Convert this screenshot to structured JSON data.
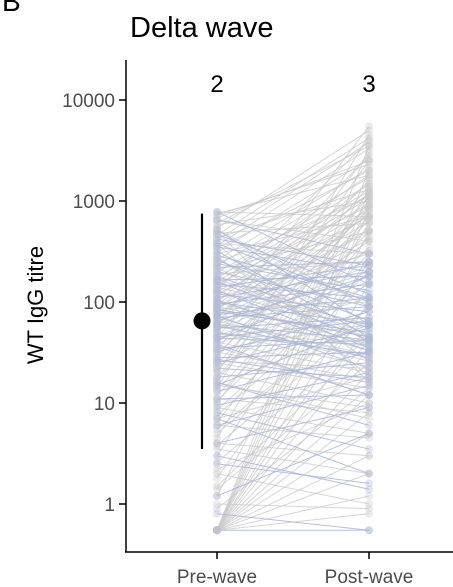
{
  "panel_letter": "B",
  "chart_data": {
    "type": "scatter",
    "title": "Delta wave",
    "xlabel": "",
    "ylabel": "WT IgG titre",
    "categories": [
      "Pre-wave",
      "Post-wave"
    ],
    "y_scale": "log10",
    "ylim": [
      0.4,
      20000
    ],
    "y_ticks": [
      1,
      10,
      100,
      1000,
      10000
    ],
    "y_tick_labels": [
      "1",
      "10",
      "100",
      "1000",
      "10000"
    ],
    "annotations": [
      "2",
      "3"
    ],
    "grid": false,
    "legend": "none",
    "summary": {
      "category": "Pre-wave",
      "median": 65,
      "lower": 3.5,
      "upper": 750
    },
    "colors": {
      "grey": "#c8c8c8",
      "blue": "#a9b6d9",
      "summary": "#000000",
      "axis": "#000000"
    },
    "pairs_blue": [
      [
        0.55,
        0.55
      ],
      [
        0.8,
        0.55
      ],
      [
        1.2,
        5
      ],
      [
        2.5,
        1.6
      ],
      [
        4,
        9
      ],
      [
        6,
        15
      ],
      [
        8,
        3.5
      ],
      [
        9.5,
        20
      ],
      [
        11,
        12
      ],
      [
        13,
        32
      ],
      [
        15,
        60
      ],
      [
        18,
        25
      ],
      [
        22,
        18
      ],
      [
        25,
        55
      ],
      [
        28,
        32
      ],
      [
        32,
        80
      ],
      [
        35,
        42
      ],
      [
        38,
        12
      ],
      [
        42,
        180
      ],
      [
        45,
        65
      ],
      [
        50,
        30
      ],
      [
        55,
        70
      ],
      [
        60,
        42
      ],
      [
        65,
        180
      ],
      [
        70,
        90
      ],
      [
        75,
        110
      ],
      [
        80,
        50
      ],
      [
        85,
        45
      ],
      [
        90,
        250
      ],
      [
        95,
        150
      ],
      [
        100,
        60
      ],
      [
        110,
        200
      ],
      [
        120,
        80
      ],
      [
        130,
        35
      ],
      [
        140,
        230
      ],
      [
        150,
        110
      ],
      [
        165,
        180
      ],
      [
        180,
        55
      ],
      [
        200,
        90
      ],
      [
        220,
        250
      ],
      [
        240,
        130
      ],
      [
        260,
        65
      ],
      [
        290,
        110
      ],
      [
        320,
        45
      ],
      [
        350,
        200
      ],
      [
        380,
        100
      ],
      [
        420,
        230
      ],
      [
        470,
        120
      ],
      [
        520,
        60
      ],
      [
        650,
        300
      ],
      [
        780,
        150
      ],
      [
        3,
        1.4
      ],
      [
        7,
        2
      ],
      [
        16,
        6
      ],
      [
        27,
        16
      ],
      [
        44,
        38
      ],
      [
        58,
        28
      ],
      [
        73,
        22
      ],
      [
        105,
        33
      ],
      [
        160,
        42
      ]
    ],
    "pairs_grey": [
      [
        0.55,
        1.2
      ],
      [
        0.55,
        2
      ],
      [
        0.55,
        3
      ],
      [
        0.55,
        5
      ],
      [
        0.55,
        8
      ],
      [
        0.55,
        12
      ],
      [
        0.55,
        20
      ],
      [
        0.55,
        35
      ],
      [
        0.55,
        60
      ],
      [
        0.55,
        100
      ],
      [
        0.55,
        150
      ],
      [
        0.55,
        300
      ],
      [
        0.55,
        500
      ],
      [
        0.55,
        800
      ],
      [
        0.55,
        1200
      ],
      [
        0.55,
        2000
      ],
      [
        0.55,
        3500
      ],
      [
        1.2,
        900
      ],
      [
        1.5,
        40
      ],
      [
        1.8,
        250
      ],
      [
        2.2,
        10
      ],
      [
        3,
        600
      ],
      [
        3.5,
        2
      ],
      [
        4.5,
        1300
      ],
      [
        5,
        90
      ],
      [
        6.5,
        450
      ],
      [
        7,
        18
      ],
      [
        8.5,
        200
      ],
      [
        10,
        1000
      ],
      [
        12,
        350
      ],
      [
        14,
        4500
      ],
      [
        16,
        7
      ],
      [
        18,
        700
      ],
      [
        20,
        2500
      ],
      [
        23,
        150
      ],
      [
        26,
        22
      ],
      [
        30,
        900
      ],
      [
        33,
        3000
      ],
      [
        36,
        12
      ],
      [
        40,
        400
      ],
      [
        45,
        1600
      ],
      [
        48,
        40
      ],
      [
        52,
        750
      ],
      [
        56,
        5500
      ],
      [
        60,
        200
      ],
      [
        65,
        30
      ],
      [
        70,
        1200
      ],
      [
        75,
        500
      ],
      [
        80,
        2800
      ],
      [
        85,
        100
      ],
      [
        90,
        45
      ],
      [
        100,
        1500
      ],
      [
        110,
        300
      ],
      [
        120,
        700
      ],
      [
        130,
        4000
      ],
      [
        140,
        60
      ],
      [
        150,
        900
      ],
      [
        170,
        1800
      ],
      [
        190,
        250
      ],
      [
        210,
        500
      ],
      [
        240,
        1100
      ],
      [
        270,
        40
      ],
      [
        300,
        700
      ],
      [
        340,
        2000
      ],
      [
        380,
        300
      ],
      [
        430,
        1300
      ],
      [
        480,
        600
      ],
      [
        520,
        90
      ],
      [
        580,
        1000
      ],
      [
        650,
        400
      ],
      [
        720,
        2300
      ],
      [
        780,
        700
      ],
      [
        0.55,
        0.8
      ],
      [
        1,
        0.9
      ],
      [
        2,
        1
      ],
      [
        4,
        3
      ],
      [
        6,
        4.5
      ],
      [
        9,
        5
      ],
      [
        11,
        8
      ],
      [
        15,
        9
      ],
      [
        20,
        10
      ],
      [
        25,
        14
      ],
      [
        32,
        17
      ],
      [
        40,
        20
      ],
      [
        50,
        23
      ],
      [
        60,
        26
      ],
      [
        70,
        28
      ],
      [
        85,
        33
      ],
      [
        100,
        38
      ],
      [
        130,
        45
      ],
      [
        170,
        48
      ],
      [
        220,
        35
      ],
      [
        280,
        26
      ],
      [
        380,
        18
      ],
      [
        500,
        16
      ],
      [
        0.9,
        14
      ],
      [
        1.4,
        25
      ],
      [
        2.6,
        45
      ],
      [
        3.8,
        70
      ],
      [
        5.5,
        90
      ],
      [
        7.5,
        160
      ],
      [
        10.5,
        300
      ],
      [
        13.5,
        500
      ],
      [
        17,
        650
      ],
      [
        21,
        850
      ],
      [
        24,
        1100
      ],
      [
        29,
        1400
      ],
      [
        34,
        60
      ],
      [
        39,
        110
      ],
      [
        46,
        160
      ],
      [
        53,
        230
      ],
      [
        62,
        320
      ],
      [
        68,
        420
      ],
      [
        78,
        520
      ],
      [
        88,
        620
      ],
      [
        96,
        710
      ],
      [
        115,
        820
      ],
      [
        125,
        950
      ],
      [
        145,
        1050
      ],
      [
        160,
        1150
      ],
      [
        175,
        1250
      ],
      [
        195,
        1450
      ],
      [
        230,
        1700
      ],
      [
        260,
        2100
      ],
      [
        310,
        2600
      ],
      [
        360,
        3300
      ],
      [
        410,
        3800
      ],
      [
        460,
        4200
      ],
      [
        540,
        5000
      ],
      [
        600,
        3500
      ],
      [
        680,
        2500
      ],
      [
        750,
        1800
      ]
    ]
  }
}
